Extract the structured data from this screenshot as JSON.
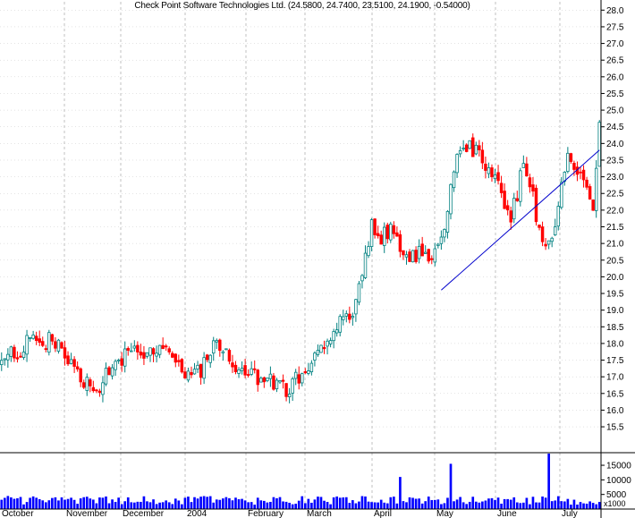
{
  "chart_data": {
    "type": "candlestick",
    "title": "Check Point Software Technologies Ltd. (24.5800, 24.7400, 23.5100, 24.1900, -0.54000)",
    "price_axis": {
      "ylim": [
        14.75,
        28.25
      ],
      "ticks": [
        "15.5",
        "16.0",
        "16.5",
        "17.0",
        "17.5",
        "18.0",
        "18.5",
        "19.0",
        "19.5",
        "20.0",
        "20.5",
        "21.0",
        "21.5",
        "22.0",
        "22.5",
        "23.0",
        "23.5",
        "24.0",
        "24.5",
        "25.0",
        "25.5",
        "26.0",
        "26.5",
        "27.0",
        "27.5",
        "28.0"
      ]
    },
    "volume_axis": {
      "ylim": [
        0,
        19000
      ],
      "ticks": [
        "5000",
        "10000",
        "15000"
      ],
      "unit": "x1000"
    },
    "x_axis": {
      "months": [
        "October",
        "November",
        "December",
        "2004",
        "February",
        "March",
        "April",
        "May",
        "June",
        "July"
      ],
      "n_sessions": 190
    },
    "series": [
      {
        "values": [
          {
            "x": 0,
            "ohlc": [
              17.6,
              17.9,
              17.1,
              17.3
            ]
          },
          {
            "x": 3,
            "ohlc": [
              17.3,
              17.9,
              17.2,
              17.7
            ]
          },
          {
            "x": 6,
            "ohlc": [
              17.7,
              18.0,
              17.5,
              17.8
            ]
          },
          {
            "x": 9,
            "ohlc": [
              17.8,
              18.2,
              17.6,
              18.1
            ]
          },
          {
            "x": 12,
            "ohlc": [
              18.1,
              18.3,
              17.8,
              18.0
            ]
          },
          {
            "x": 15,
            "ohlc": [
              18.0,
              18.2,
              17.9,
              18.1
            ]
          },
          {
            "x": 18,
            "ohlc": [
              18.1,
              18.4,
              17.7,
              17.9
            ]
          },
          {
            "x": 21,
            "ohlc": [
              17.9,
              18.0,
              17.1,
              17.4
            ]
          },
          {
            "x": 24,
            "ohlc": [
              17.4,
              17.6,
              16.9,
              17.1
            ]
          },
          {
            "x": 27,
            "ohlc": [
              17.1,
              17.3,
              16.6,
              16.8
            ]
          },
          {
            "x": 30,
            "ohlc": [
              16.8,
              16.9,
              16.0,
              16.4
            ]
          },
          {
            "x": 33,
            "ohlc": [
              16.4,
              17.2,
              16.3,
              17.1
            ]
          },
          {
            "x": 36,
            "ohlc": [
              17.1,
              17.5,
              16.9,
              17.3
            ]
          },
          {
            "x": 39,
            "ohlc": [
              17.3,
              17.8,
              17.2,
              17.6
            ]
          },
          {
            "x": 42,
            "ohlc": [
              17.6,
              18.2,
              17.5,
              18.0
            ]
          },
          {
            "x": 45,
            "ohlc": [
              18.0,
              18.3,
              17.6,
              17.8
            ]
          },
          {
            "x": 48,
            "ohlc": [
              17.8,
              18.1,
              17.5,
              17.9
            ]
          },
          {
            "x": 51,
            "ohlc": [
              17.9,
              18.2,
              17.6,
              17.8
            ]
          },
          {
            "x": 54,
            "ohlc": [
              17.8,
              18.1,
              17.4,
              17.5
            ]
          },
          {
            "x": 57,
            "ohlc": [
              17.5,
              17.7,
              17.0,
              17.2
            ]
          },
          {
            "x": 60,
            "ohlc": [
              17.2,
              17.4,
              16.6,
              16.9
            ]
          },
          {
            "x": 63,
            "ohlc": [
              16.9,
              17.4,
              16.7,
              17.2
            ]
          },
          {
            "x": 66,
            "ohlc": [
              17.2,
              17.9,
              17.1,
              17.8
            ]
          },
          {
            "x": 69,
            "ohlc": [
              17.8,
              18.1,
              17.6,
              17.9
            ]
          },
          {
            "x": 72,
            "ohlc": [
              17.9,
              18.0,
              17.4,
              17.5
            ]
          },
          {
            "x": 75,
            "ohlc": [
              17.5,
              17.7,
              16.9,
              17.1
            ]
          },
          {
            "x": 78,
            "ohlc": [
              17.1,
              17.3,
              16.8,
              17.2
            ]
          },
          {
            "x": 81,
            "ohlc": [
              17.2,
              17.5,
              16.9,
              17.0
            ]
          },
          {
            "x": 84,
            "ohlc": [
              17.0,
              17.3,
              16.8,
              17.1
            ]
          },
          {
            "x": 87,
            "ohlc": [
              17.1,
              17.2,
              16.6,
              16.7
            ]
          },
          {
            "x": 90,
            "ohlc": [
              16.7,
              16.8,
              16.5,
              16.6
            ]
          },
          {
            "x": 93,
            "ohlc": [
              16.6,
              17.0,
              16.5,
              16.9
            ]
          },
          {
            "x": 96,
            "ohlc": [
              16.9,
              17.3,
              16.8,
              17.1
            ]
          },
          {
            "x": 99,
            "ohlc": [
              17.1,
              17.6,
              17.0,
              17.5
            ]
          },
          {
            "x": 102,
            "ohlc": [
              17.5,
              18.2,
              17.4,
              18.0
            ]
          },
          {
            "x": 105,
            "ohlc": [
              18.0,
              18.6,
              17.9,
              18.4
            ]
          },
          {
            "x": 108,
            "ohlc": [
              18.4,
              18.9,
              18.3,
              18.7
            ]
          },
          {
            "x": 111,
            "ohlc": [
              18.7,
              19.2,
              18.6,
              19.0
            ]
          },
          {
            "x": 114,
            "ohlc": [
              19.0,
              20.1,
              18.9,
              19.9
            ]
          },
          {
            "x": 117,
            "ohlc": [
              19.9,
              21.8,
              19.8,
              21.6
            ]
          },
          {
            "x": 120,
            "ohlc": [
              21.6,
              21.8,
              21.0,
              21.2
            ]
          },
          {
            "x": 123,
            "ohlc": [
              21.2,
              21.6,
              20.9,
              21.4
            ]
          },
          {
            "x": 126,
            "ohlc": [
              21.4,
              21.5,
              20.5,
              20.9
            ]
          },
          {
            "x": 129,
            "ohlc": [
              20.9,
              21.2,
              20.3,
              20.6
            ]
          },
          {
            "x": 132,
            "ohlc": [
              20.6,
              20.9,
              20.4,
              20.7
            ]
          },
          {
            "x": 135,
            "ohlc": [
              20.7,
              20.9,
              20.4,
              20.5
            ]
          },
          {
            "x": 138,
            "ohlc": [
              20.5,
              21.0,
              19.6,
              20.8
            ]
          },
          {
            "x": 141,
            "ohlc": [
              20.8,
              22.2,
              20.7,
              22.1
            ]
          },
          {
            "x": 144,
            "ohlc": [
              22.1,
              23.8,
              22.0,
              23.6
            ]
          },
          {
            "x": 147,
            "ohlc": [
              23.6,
              24.1,
              23.3,
              23.9
            ]
          },
          {
            "x": 150,
            "ohlc": [
              23.9,
              24.1,
              23.6,
              23.7
            ]
          },
          {
            "x": 153,
            "ohlc": [
              23.7,
              24.0,
              23.3,
              23.4
            ]
          }
        ]
      }
    ],
    "trendline": {
      "from": {
        "x": 139,
        "y": 19.6
      },
      "to": {
        "x": 189,
        "y": 23.8
      },
      "color": "#0000cc"
    },
    "colors": {
      "up": "#008080",
      "down": "#ff0000",
      "volume": "#0000ff",
      "grid": "#999999",
      "trendline": "#0000cc"
    }
  }
}
